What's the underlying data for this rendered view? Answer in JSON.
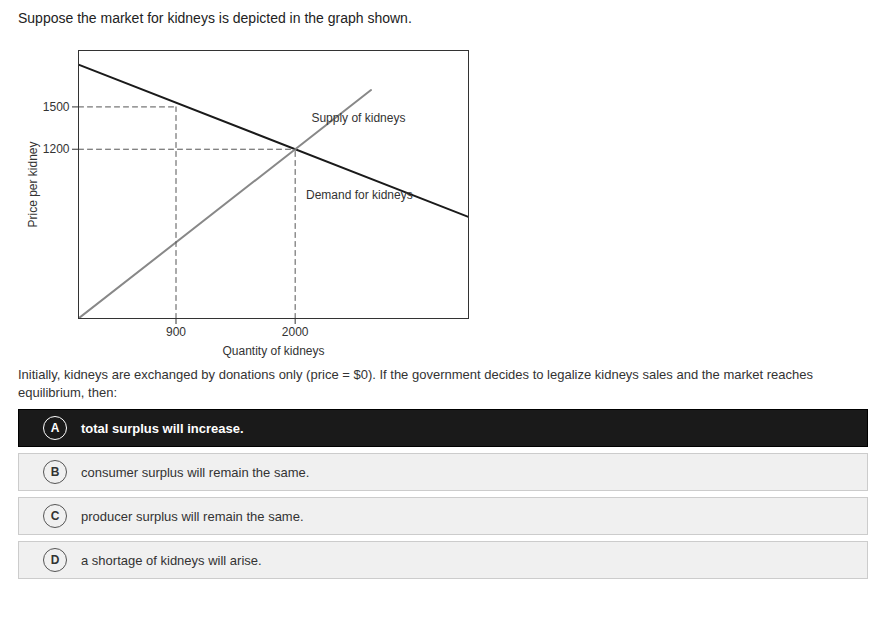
{
  "chart_data": {
    "type": "line",
    "title": "Suppose the market for kidneys is depicted in the graph shown.",
    "xlabel": "Quantity of kidneys",
    "ylabel": "Price per kidney",
    "xlim": [
      0,
      3600
    ],
    "ylim": [
      0,
      1900
    ],
    "xticks": [
      900,
      2000
    ],
    "yticks": [
      1200,
      1500
    ],
    "grid": false,
    "series": [
      {
        "x": [
          0,
          3600
        ],
        "values": [
          1800,
          720
        ],
        "color": "#1a1a1a",
        "line_style": "solid"
      },
      {
        "x": [
          0,
          2700
        ],
        "values": [
          0,
          1620
        ],
        "color": "#888888",
        "line_style": "solid"
      },
      {
        "x": [
          2000,
          2000
        ],
        "values": [
          0,
          1200
        ],
        "color": "#555555",
        "line_style": "dashed"
      },
      {
        "x": [
          0,
          2000
        ],
        "values": [
          1200,
          1200
        ],
        "color": "#555555",
        "line_style": "dashed"
      },
      {
        "x": [
          900,
          900
        ],
        "values": [
          0,
          1500
        ],
        "color": "#555555",
        "line_style": "dashed"
      },
      {
        "x": [
          0,
          900
        ],
        "values": [
          1500,
          1500
        ],
        "color": "#555555",
        "line_style": "dashed"
      }
    ],
    "annotations": [
      {
        "text": "Supply of kidneys",
        "x": 2150,
        "y": 1380
      },
      {
        "text": "Demand for kidneys",
        "x": 2100,
        "y": 830
      }
    ],
    "paragraph": "Initially, kidneys are exchanged by donations only (price = $0). If the government decides to legalize kidneys sales and the market reaches equilibrium, then:",
    "choices": [
      {
        "letter": "A",
        "text": "total surplus will increase.",
        "selected": true
      },
      {
        "letter": "B",
        "text": "consumer surplus will remain the same.",
        "selected": false
      },
      {
        "letter": "C",
        "text": "producer surplus will remain the same.",
        "selected": false
      },
      {
        "letter": "D",
        "text": "a shortage of kidneys will arise.",
        "selected": false
      }
    ]
  }
}
